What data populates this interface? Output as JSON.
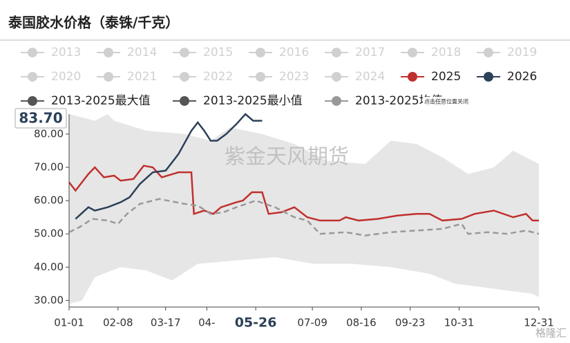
{
  "chart_data": {
    "type": "line",
    "title": "泰国胶水价格（泰铢/千克）",
    "watermark": "紫金天风期货",
    "tooltip_value": "83.70",
    "tooltip_hint": "点击任意位置关闭",
    "corner_mark": "格隆汇",
    "inactive_legend": {
      "color": "#d0d0d0",
      "names": [
        "2013",
        "2014",
        "2015",
        "2016",
        "2017",
        "2018",
        "2019",
        "2020",
        "2021",
        "2022",
        "2023",
        "2024"
      ]
    },
    "xlim": [
      0,
      365
    ],
    "xticks": [
      {
        "value": 0,
        "label": "01-01"
      },
      {
        "value": 38,
        "label": "02-08"
      },
      {
        "value": 75,
        "label": "03-17"
      },
      {
        "value": 107,
        "label": "04-"
      },
      {
        "value": 145,
        "label": "05-26"
      },
      {
        "value": 189,
        "label": "07-09"
      },
      {
        "value": 227,
        "label": "08-16"
      },
      {
        "value": 265,
        "label": "09-23"
      },
      {
        "value": 303,
        "label": "10-31"
      },
      {
        "value": 365,
        "label": "12-31"
      }
    ],
    "highlight_xtick": 4,
    "ylim": [
      28,
      86
    ],
    "yticks": [
      {
        "value": 30,
        "label": "30.00"
      },
      {
        "value": 40,
        "label": "40.00"
      },
      {
        "value": 50,
        "label": "50.00"
      },
      {
        "value": 60,
        "label": "60.00"
      },
      {
        "value": 70,
        "label": "70.00"
      },
      {
        "value": 80,
        "label": "80.00"
      }
    ],
    "band_fill": "#e6e6e6",
    "series": [
      {
        "name": "2025",
        "color": "#c0302e",
        "style": "solid",
        "x": [
          0,
          5,
          15,
          20,
          27,
          35,
          40,
          50,
          58,
          65,
          72,
          85,
          95,
          97,
          105,
          112,
          118,
          130,
          135,
          142,
          150,
          155,
          165,
          175,
          185,
          195,
          210,
          215,
          225,
          240,
          255,
          270,
          280,
          290,
          305,
          315,
          330,
          345,
          355,
          360,
          365
        ],
        "values": [
          65.5,
          63,
          68,
          70,
          67,
          67.5,
          66,
          66.5,
          70.5,
          70,
          67,
          68.5,
          68.5,
          56,
          57,
          56,
          58,
          59.5,
          60,
          62.5,
          62.5,
          56,
          56.5,
          58,
          55,
          54,
          54,
          55,
          54,
          54.5,
          55.5,
          56,
          56,
          54,
          54.5,
          56,
          57,
          55,
          56,
          54,
          54
        ]
      },
      {
        "name": "2026",
        "color": "#2c4058",
        "style": "solid",
        "x": [
          5,
          15,
          20,
          30,
          40,
          47,
          55,
          65,
          75,
          85,
          95,
          100,
          105,
          110,
          115,
          122,
          130,
          137,
          143,
          150
        ],
        "values": [
          54.5,
          58,
          57,
          58,
          59.5,
          61,
          65,
          68.5,
          69,
          74,
          81,
          83.5,
          81,
          78,
          78,
          80,
          83,
          86,
          84,
          84
        ]
      },
      {
        "name": "2013-2025最大值",
        "color": "#555555",
        "style": "band-max",
        "x": [
          0,
          10,
          20,
          30,
          35,
          60,
          90,
          110,
          125,
          150,
          175,
          200,
          230,
          250,
          270,
          290,
          310,
          330,
          345,
          365
        ],
        "values": [
          86,
          85,
          84,
          86,
          84,
          81,
          80,
          78,
          82,
          80,
          77,
          72,
          71,
          78,
          77,
          73,
          68,
          70,
          75,
          71
        ]
      },
      {
        "name": "2013-2025最小值",
        "color": "#555555",
        "style": "band-min",
        "x": [
          0,
          10,
          20,
          40,
          60,
          80,
          100,
          130,
          160,
          190,
          220,
          250,
          280,
          300,
          320,
          340,
          360,
          365
        ],
        "values": [
          29,
          30,
          37,
          40,
          39,
          36,
          41,
          42,
          43,
          41,
          41,
          40,
          38,
          35,
          34,
          33,
          32,
          31
        ]
      },
      {
        "name": "2013-2025均值",
        "color": "#999999",
        "style": "dashed",
        "x": [
          0,
          8,
          18,
          30,
          38,
          45,
          55,
          70,
          90,
          100,
          110,
          120,
          130,
          145,
          160,
          175,
          185,
          195,
          215,
          230,
          250,
          270,
          290,
          300,
          305,
          310,
          325,
          340,
          355,
          365
        ],
        "values": [
          50.5,
          52,
          54.5,
          54,
          53,
          56,
          59,
          60.5,
          59,
          58.5,
          56,
          56.5,
          58,
          60,
          58,
          55,
          54,
          50,
          50.5,
          49.5,
          50.5,
          51,
          51.5,
          52.5,
          53,
          50,
          50.5,
          50,
          51,
          50
        ]
      }
    ]
  }
}
